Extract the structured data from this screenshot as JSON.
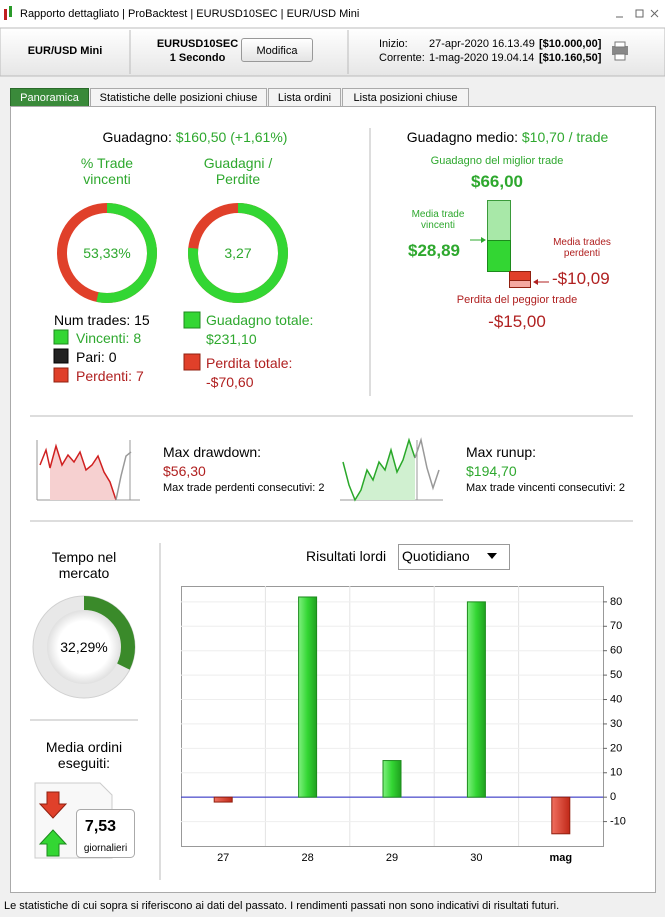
{
  "window": {
    "title": "Rapporto dettagliato | ProBacktest | EURUSD10SEC | EUR/USD Mini"
  },
  "header": {
    "instrument": "EUR/USD Mini",
    "code": "EURUSD10SEC",
    "timeframe": "1 Secondo",
    "button": "Modifica",
    "start_label": "Inizio:",
    "start_date": "27-apr-2020 16.13.49",
    "start_value": "[$10.000,00]",
    "current_label": "Corrente:",
    "current_date": "1-mag-2020 19.04.14",
    "current_value": "[$10.160,50]"
  },
  "tabs": [
    "Panoramica",
    "Statistiche delle posizioni chiuse",
    "Lista ordini",
    "Lista posizioni chiuse"
  ],
  "overview": {
    "gain_label": "Guadagno:",
    "gain_value": "$160,50 (+1,61%)",
    "win_title": "% Trade vincenti",
    "ratio_title": "Guadagni / Perdite",
    "win_donut": {
      "value": 53.33,
      "label": "53,33%"
    },
    "ratio_donut": {
      "value": 3.27,
      "label": "3,27"
    },
    "num_trades_label": "Num trades:",
    "num_trades": 15,
    "winners_label": "Vincenti:",
    "winners": 8,
    "even_label": "Pari:",
    "even": 0,
    "losers_label": "Perdenti:",
    "losers": 7,
    "total_gain_label": "Guadagno totale:",
    "total_gain": "$231,10",
    "total_loss_label": "Perdita totale:",
    "total_loss": "-$70,60",
    "avg_gain_label": "Guadagno medio:",
    "avg_gain": "$10,70 / trade",
    "best_label": "Guadagno del miglior trade",
    "best": "$66,00",
    "avg_win_label": "Media trade vincenti",
    "avg_win": "$28,89",
    "avg_loss_label": "Media trades perdenti",
    "avg_loss": "-$10,09",
    "worst_label": "Perdita del peggior trade",
    "worst": "-$15,00",
    "drawdown_label": "Max drawdown:",
    "drawdown": "$56,30",
    "max_losing_label": "Max trade perdenti consecutivi:",
    "max_losing": 2,
    "runup_label": "Max runup:",
    "runup": "$194,70",
    "max_winning_label": "Max trade vincenti consecutivi:",
    "max_winning": 2,
    "market_time_title": "Tempo nel mercato",
    "market_time": {
      "value": 32.29,
      "label": "32,29%"
    },
    "orders_title": "Media ordini eseguiti:",
    "orders_per_day": "7,53",
    "orders_unit": "giornalieri"
  },
  "chart_data": {
    "type": "bar",
    "title": "Risultati lordi",
    "period": "Quotidiano",
    "categories": [
      "27",
      "28",
      "29",
      "30",
      "mag"
    ],
    "values": [
      -2,
      82,
      15,
      80,
      -15
    ],
    "positive_color": "#33d633",
    "negative_color": "#e0402a",
    "ylim": [
      -20,
      86.5
    ],
    "yticks": [
      -10,
      0,
      10,
      20,
      30,
      40,
      50,
      60,
      70,
      80
    ],
    "grid": true
  },
  "footer": "Le statistiche di cui sopra si riferiscono ai dati del passato. I rendimenti passati non sono indicativi di risultati futuri."
}
